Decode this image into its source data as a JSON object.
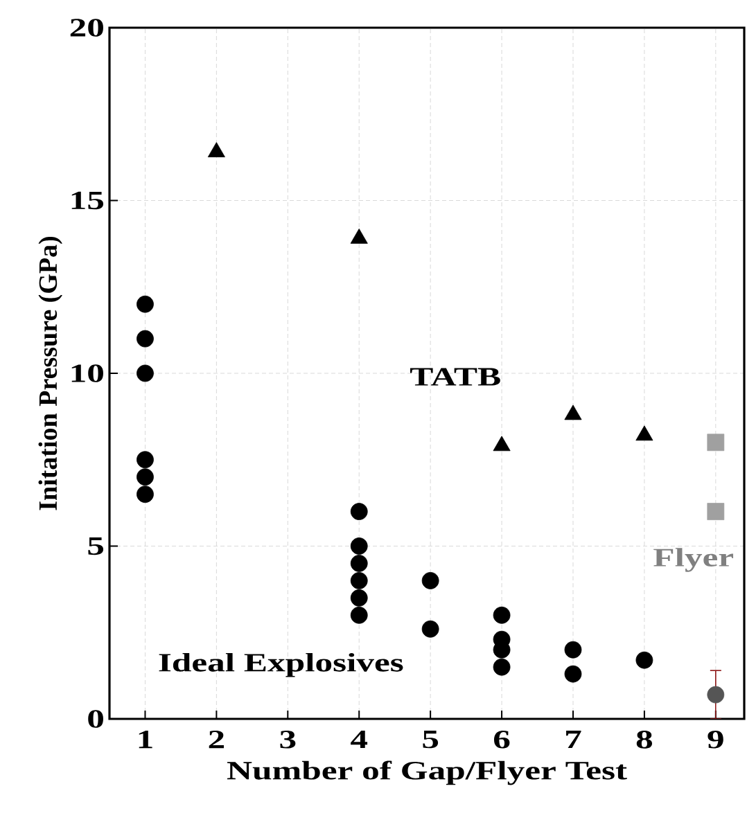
{
  "chart_data": {
    "type": "scatter",
    "xlabel": "Number of Gap/Flyer Test",
    "ylabel": "Initation Pressure (GPa)",
    "xlim": [
      0.5,
      9.4
    ],
    "ylim": [
      0,
      20
    ],
    "xticks": [
      1,
      2,
      3,
      4,
      5,
      6,
      7,
      8,
      9
    ],
    "yticks": [
      0,
      5,
      10,
      15,
      20
    ],
    "grid": true,
    "series": [
      {
        "color": "#000000",
        "marker": "circle",
        "x": [
          1,
          1,
          1,
          1,
          1,
          1,
          4,
          4,
          4,
          4,
          4,
          4,
          5,
          5,
          6,
          6,
          6,
          6,
          7,
          7,
          8
        ],
        "values": [
          12,
          11,
          10,
          7.5,
          7,
          6.5,
          6,
          5,
          4.5,
          4,
          3.5,
          3,
          4,
          2.6,
          3,
          2.3,
          2,
          1.5,
          2,
          1.3,
          1.7
        ]
      },
      {
        "color": "#000000",
        "marker": "triangle",
        "x": [
          2,
          4,
          6,
          7,
          8
        ],
        "values": [
          16.4,
          13.9,
          7.9,
          8.8,
          8.2
        ]
      },
      {
        "color": "#a0a0a0",
        "marker": "square",
        "x": [
          9,
          9
        ],
        "values": [
          8,
          6
        ]
      },
      {
        "color": "#555555",
        "marker": "circle",
        "x": [
          9
        ],
        "values": [
          0.7
        ],
        "errors": [
          0.7
        ]
      }
    ],
    "annotations": [
      "TATB",
      "Ideal Explosives",
      "Flyer"
    ]
  }
}
